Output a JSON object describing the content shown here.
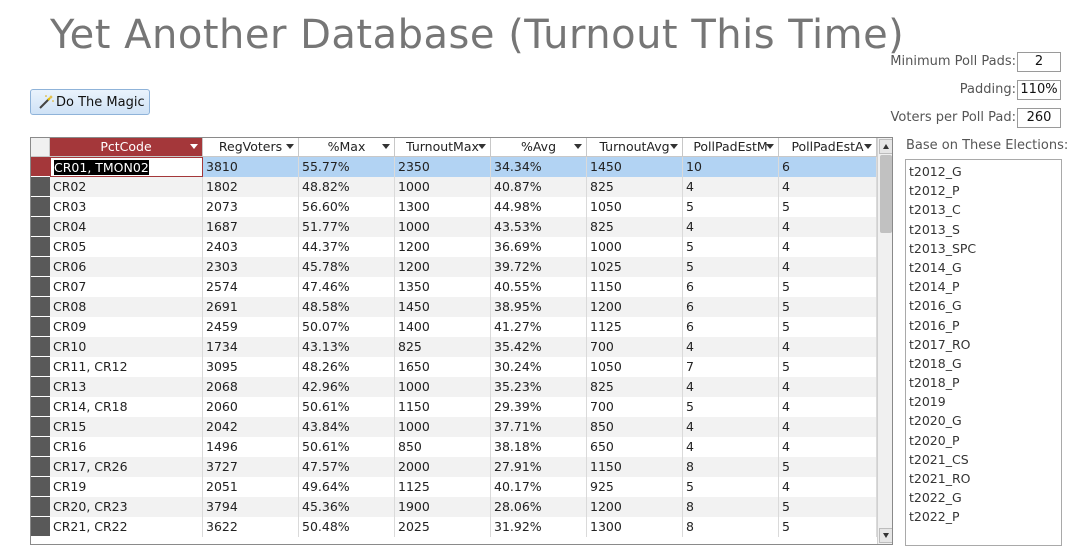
{
  "title": "Yet Another Database (Turnout This Time)",
  "magic_button": {
    "label": "Do The Magic",
    "icon": "magic-wand-icon"
  },
  "params": {
    "min_poll_pads": {
      "label": "Minimum Poll Pads:",
      "value": "2"
    },
    "padding": {
      "label": "Padding:",
      "value": "110%"
    },
    "voters_per_pad": {
      "label": "Voters per Poll Pad:",
      "value": "260"
    }
  },
  "elections": {
    "label": "Base on These Elections:",
    "items": [
      "t2012_G",
      "t2012_P",
      "t2013_C",
      "t2013_S",
      "t2013_SPC",
      "t2014_G",
      "t2014_P",
      "t2016_G",
      "t2016_P",
      "t2017_RO",
      "t2018_G",
      "t2018_P",
      "t2019",
      "t2020_G",
      "t2020_P",
      "t2021_CS",
      "t2021_RO",
      "t2022_G",
      "t2022_P"
    ]
  },
  "grid": {
    "columns": [
      "PctCode",
      "RegVoters",
      "%Max",
      "TurnoutMax",
      "%Avg",
      "TurnoutAvg",
      "PollPadEstM",
      "PollPadEstA"
    ],
    "rows": [
      [
        "CR01, TMON02",
        "3810",
        "55.77%",
        "2350",
        "34.34%",
        "1450",
        "10",
        "6"
      ],
      [
        "CR02",
        "1802",
        "48.82%",
        "1000",
        "40.87%",
        "825",
        "4",
        "4"
      ],
      [
        "CR03",
        "2073",
        "56.60%",
        "1300",
        "44.98%",
        "1050",
        "5",
        "5"
      ],
      [
        "CR04",
        "1687",
        "51.77%",
        "1000",
        "43.53%",
        "825",
        "4",
        "4"
      ],
      [
        "CR05",
        "2403",
        "44.37%",
        "1200",
        "36.69%",
        "1000",
        "5",
        "4"
      ],
      [
        "CR06",
        "2303",
        "45.78%",
        "1200",
        "39.72%",
        "1025",
        "5",
        "4"
      ],
      [
        "CR07",
        "2574",
        "47.46%",
        "1350",
        "40.55%",
        "1150",
        "6",
        "5"
      ],
      [
        "CR08",
        "2691",
        "48.58%",
        "1450",
        "38.95%",
        "1200",
        "6",
        "5"
      ],
      [
        "CR09",
        "2459",
        "50.07%",
        "1400",
        "41.27%",
        "1125",
        "6",
        "5"
      ],
      [
        "CR10",
        "1734",
        "43.13%",
        "825",
        "35.42%",
        "700",
        "4",
        "4"
      ],
      [
        "CR11, CR12",
        "3095",
        "48.26%",
        "1650",
        "30.24%",
        "1050",
        "7",
        "5"
      ],
      [
        "CR13",
        "2068",
        "42.96%",
        "1000",
        "35.23%",
        "825",
        "4",
        "4"
      ],
      [
        "CR14, CR18",
        "2060",
        "50.61%",
        "1150",
        "29.39%",
        "700",
        "5",
        "4"
      ],
      [
        "CR15",
        "2042",
        "43.84%",
        "1000",
        "37.71%",
        "850",
        "4",
        "4"
      ],
      [
        "CR16",
        "1496",
        "50.61%",
        "850",
        "38.18%",
        "650",
        "4",
        "4"
      ],
      [
        "CR17, CR26",
        "3727",
        "47.57%",
        "2000",
        "27.91%",
        "1150",
        "8",
        "5"
      ],
      [
        "CR19",
        "2051",
        "49.64%",
        "1125",
        "40.17%",
        "925",
        "5",
        "4"
      ],
      [
        "CR20, CR23",
        "3794",
        "45.36%",
        "1900",
        "28.06%",
        "1200",
        "8",
        "5"
      ],
      [
        "CR21, CR22",
        "3622",
        "50.48%",
        "2025",
        "31.92%",
        "1300",
        "8",
        "5"
      ]
    ]
  }
}
